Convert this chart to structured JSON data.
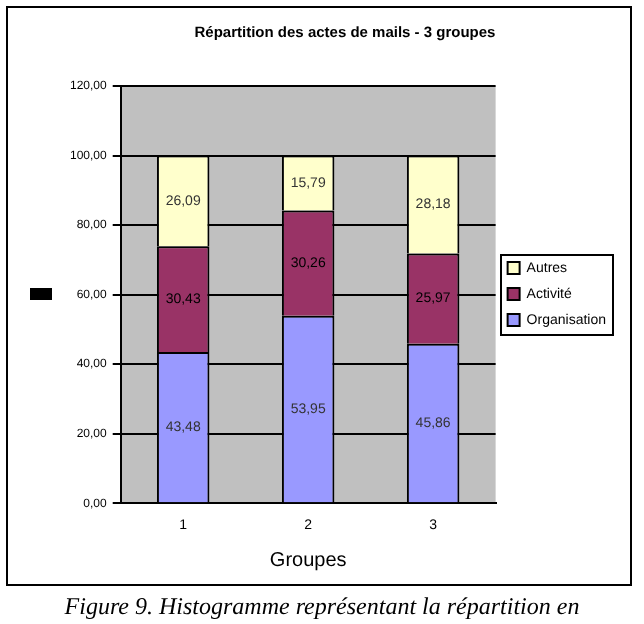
{
  "chart_data": {
    "type": "bar",
    "stacked": true,
    "title": "Répartition des actes de mails - 3 groupes",
    "xlabel": "Groupes",
    "categories": [
      "1",
      "2",
      "3"
    ],
    "series": [
      {
        "name": "Organisation",
        "color": "#9999ff",
        "values": [
          43.48,
          53.95,
          45.86
        ],
        "value_labels": [
          "43,48",
          "53,95",
          "45,86"
        ]
      },
      {
        "name": "Activité",
        "color": "#993366",
        "values": [
          30.43,
          30.26,
          25.97
        ],
        "value_labels": [
          "30,43",
          "30,26",
          "25,97"
        ]
      },
      {
        "name": "Autres",
        "color": "#ffffcc",
        "values": [
          26.09,
          15.79,
          28.18
        ],
        "value_labels": [
          "26,09",
          "15,79",
          "28,18"
        ]
      }
    ],
    "ylim": [
      0,
      120
    ],
    "yticks": [
      {
        "value": 0,
        "label": "0,00"
      },
      {
        "value": 20,
        "label": "20,00"
      },
      {
        "value": 40,
        "label": "40,00"
      },
      {
        "value": 60,
        "label": "60,00"
      },
      {
        "value": 80,
        "label": "80,00"
      },
      {
        "value": 100,
        "label": "100,00"
      },
      {
        "value": 120,
        "label": "120,00"
      }
    ],
    "grid": "y",
    "legend": "right",
    "annotations": [
      "Figure 9. Histogramme représentant la répartition en"
    ]
  }
}
